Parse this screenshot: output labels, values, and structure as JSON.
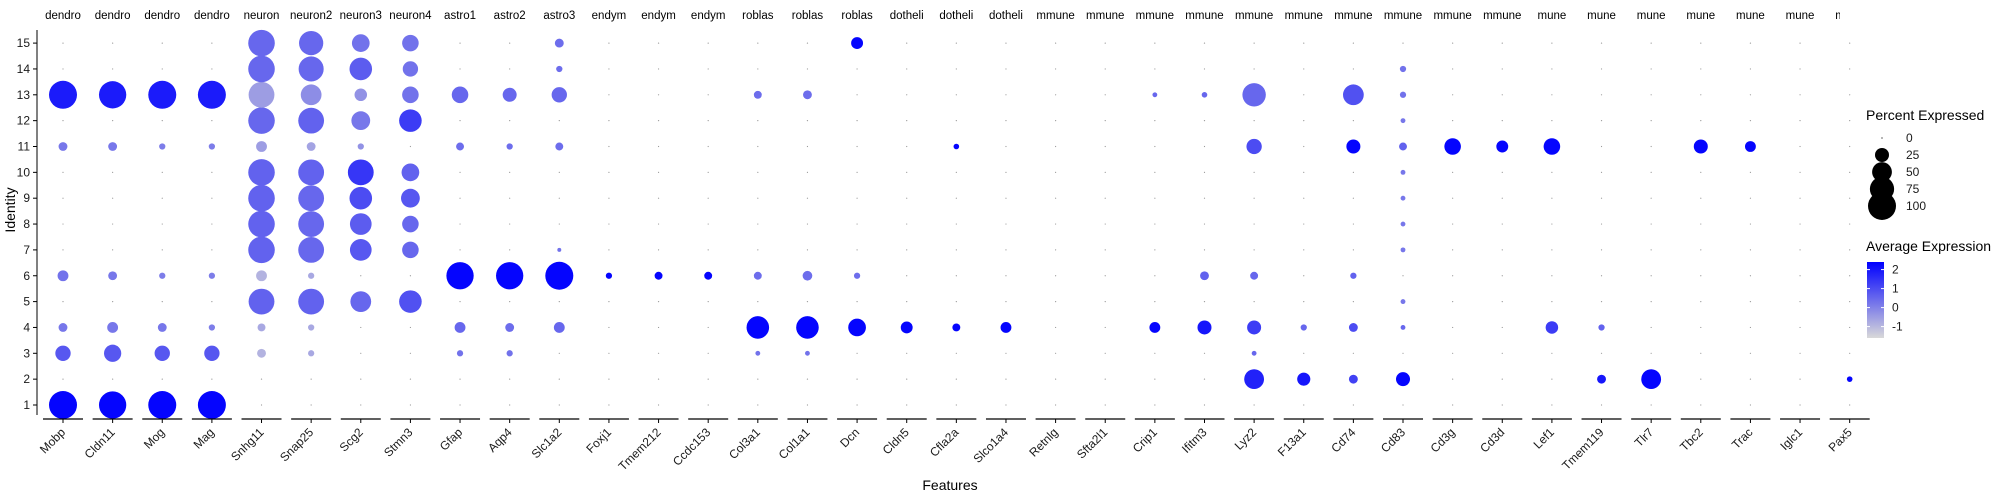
{
  "chart_data": {
    "type": "dotplot",
    "xlabel": "Features",
    "ylabel": "Identity",
    "genes": [
      "Mobp",
      "Cldn11",
      "Mog",
      "Mag",
      "Snhg11",
      "Snap25",
      "Scg2",
      "Stmn3",
      "Gfap",
      "Aqp4",
      "Slc1a2",
      "Foxj1",
      "Tmem212",
      "Ccdc153",
      "Col3a1",
      "Col1a1",
      "Dcn",
      "Cldn5",
      "Cfla2a",
      "Slco1a4",
      "Retnlg",
      "Sftа2l1",
      "Crip1",
      "Ifitm3",
      "Lyz2",
      "F13a1",
      "Cd74",
      "Cd83",
      "Cd3g",
      "Cd3d",
      "Lef1",
      "Tmem119",
      "Tlr7",
      "Tbc2",
      "Trac",
      "Iglc1",
      "Pax5"
    ],
    "group_labels": [
      "dendro",
      "dendro",
      "dendro",
      "dendro",
      "neuron",
      "neuron2",
      "neuron3",
      "neuron4",
      "astro1",
      "astro2",
      "astro3",
      "endym",
      "endym",
      "endym",
      "roblas",
      "roblas",
      "roblas",
      "dotheli",
      "dotheli",
      "dotheli",
      "mmune",
      "mmune",
      "mmune",
      "mmune",
      "mmune",
      "mmune",
      "mmune",
      "mmune",
      "mmune",
      "mmune",
      "mune",
      "mune",
      "mune",
      "mune",
      "mune",
      "mune",
      "mune"
    ],
    "gene_groups": [
      {
        "label": "dendro",
        "genes": [
          "Mobp",
          "Cldn11",
          "Mog",
          "Mag"
        ]
      },
      {
        "label": "neuron",
        "genes": [
          "Snhg11",
          "Snap25",
          "Scg2",
          "Stmn3"
        ]
      },
      {
        "label": "astro",
        "genes": [
          "Gfap",
          "Aqp4",
          "Slc1a2"
        ]
      },
      {
        "label": "endym",
        "genes": [
          "Foxj1",
          "Tmem212",
          "Ccdc153"
        ]
      },
      {
        "label": "roblas",
        "genes": [
          "Col3a1",
          "Col1a1",
          "Dcn"
        ]
      },
      {
        "label": "dotheli",
        "genes": [
          "Cldn5",
          "Cfla2a",
          "Slco1a4"
        ]
      },
      {
        "label": "mmune",
        "genes": [
          "Retnlg",
          "Sftа2l1",
          "Crip1",
          "Ifitm3",
          "Lyz2",
          "F13a1",
          "Cd74",
          "Cd83",
          "Cd3g",
          "Cd3d",
          "Lef1",
          "Tmem119",
          "Tlr7",
          "Tbc2",
          "Trac",
          "Iglc1",
          "Pax5"
        ]
      }
    ],
    "identities": [
      "1",
      "2",
      "3",
      "4",
      "5",
      "6",
      "7",
      "8",
      "9",
      "10",
      "11",
      "12",
      "13",
      "14",
      "15"
    ],
    "legend_size": {
      "title": "Percent Expressed",
      "values": [
        0,
        25,
        50,
        75,
        100
      ]
    },
    "legend_color": {
      "title": "Average Expression",
      "ticks": [
        2,
        1,
        0,
        -1
      ],
      "range": [
        -1.6,
        2.4
      ],
      "low": "#d9d9d9",
      "high": "#0000ff"
    },
    "points": [
      {
        "g": "Mobp",
        "id": "1",
        "pct": 100,
        "avg": 2.3
      },
      {
        "g": "Mobp",
        "id": "3",
        "pct": 30,
        "avg": 0.8
      },
      {
        "g": "Mobp",
        "id": "4",
        "pct": 10,
        "avg": 0.2
      },
      {
        "g": "Mobp",
        "id": "6",
        "pct": 15,
        "avg": 0.3
      },
      {
        "g": "Mobp",
        "id": "11",
        "pct": 10,
        "avg": 0.2
      },
      {
        "g": "Mobp",
        "id": "13",
        "pct": 100,
        "avg": 1.9
      },
      {
        "g": "Cldn11",
        "id": "1",
        "pct": 95,
        "avg": 2.3
      },
      {
        "g": "Cldn11",
        "id": "3",
        "pct": 38,
        "avg": 0.8
      },
      {
        "g": "Cldn11",
        "id": "4",
        "pct": 15,
        "avg": 0.2
      },
      {
        "g": "Cldn11",
        "id": "6",
        "pct": 10,
        "avg": 0.2
      },
      {
        "g": "Cldn11",
        "id": "11",
        "pct": 10,
        "avg": 0.2
      },
      {
        "g": "Cldn11",
        "id": "13",
        "pct": 95,
        "avg": 1.9
      },
      {
        "g": "Mog",
        "id": "1",
        "pct": 100,
        "avg": 2.3
      },
      {
        "g": "Mog",
        "id": "3",
        "pct": 30,
        "avg": 0.8
      },
      {
        "g": "Mog",
        "id": "4",
        "pct": 10,
        "avg": 0.2
      },
      {
        "g": "Mog",
        "id": "6",
        "pct": 5,
        "avg": 0.1
      },
      {
        "g": "Mog",
        "id": "11",
        "pct": 5,
        "avg": 0.1
      },
      {
        "g": "Mog",
        "id": "13",
        "pct": 100,
        "avg": 1.9
      },
      {
        "g": "Mag",
        "id": "1",
        "pct": 100,
        "avg": 2.3
      },
      {
        "g": "Mag",
        "id": "3",
        "pct": 30,
        "avg": 0.8
      },
      {
        "g": "Mag",
        "id": "4",
        "pct": 5,
        "avg": 0.1
      },
      {
        "g": "Mag",
        "id": "6",
        "pct": 5,
        "avg": 0.1
      },
      {
        "g": "Mag",
        "id": "11",
        "pct": 5,
        "avg": 0.1
      },
      {
        "g": "Mag",
        "id": "13",
        "pct": 100,
        "avg": 1.9
      },
      {
        "g": "Snhg11",
        "id": "3",
        "pct": 10,
        "avg": -0.9
      },
      {
        "g": "Snhg11",
        "id": "4",
        "pct": 8,
        "avg": -0.7
      },
      {
        "g": "Snhg11",
        "id": "5",
        "pct": 85,
        "avg": 0.6
      },
      {
        "g": "Snhg11",
        "id": "6",
        "pct": 15,
        "avg": -0.9
      },
      {
        "g": "Snhg11",
        "id": "7",
        "pct": 90,
        "avg": 0.6
      },
      {
        "g": "Snhg11",
        "id": "8",
        "pct": 90,
        "avg": 0.6
      },
      {
        "g": "Snhg11",
        "id": "9",
        "pct": 90,
        "avg": 0.6
      },
      {
        "g": "Snhg11",
        "id": "10",
        "pct": 90,
        "avg": 0.6
      },
      {
        "g": "Snhg11",
        "id": "11",
        "pct": 15,
        "avg": -0.5
      },
      {
        "g": "Snhg11",
        "id": "12",
        "pct": 90,
        "avg": 0.5
      },
      {
        "g": "Snhg11",
        "id": "13",
        "pct": 85,
        "avg": -0.5
      },
      {
        "g": "Snhg11",
        "id": "14",
        "pct": 90,
        "avg": 0.5
      },
      {
        "g": "Snhg11",
        "id": "15",
        "pct": 90,
        "avg": 0.5
      },
      {
        "g": "Snap25",
        "id": "3",
        "pct": 5,
        "avg": -0.7
      },
      {
        "g": "Snap25",
        "id": "4",
        "pct": 5,
        "avg": -0.7
      },
      {
        "g": "Snap25",
        "id": "5",
        "pct": 85,
        "avg": 0.6
      },
      {
        "g": "Snap25",
        "id": "6",
        "pct": 5,
        "avg": -0.7
      },
      {
        "g": "Snap25",
        "id": "7",
        "pct": 85,
        "avg": 0.5
      },
      {
        "g": "Snap25",
        "id": "8",
        "pct": 85,
        "avg": 0.5
      },
      {
        "g": "Snap25",
        "id": "9",
        "pct": 85,
        "avg": 0.5
      },
      {
        "g": "Snap25",
        "id": "10",
        "pct": 85,
        "avg": 0.6
      },
      {
        "g": "Snap25",
        "id": "11",
        "pct": 10,
        "avg": -0.6
      },
      {
        "g": "Snap25",
        "id": "12",
        "pct": 85,
        "avg": 0.6
      },
      {
        "g": "Snap25",
        "id": "13",
        "pct": 55,
        "avg": -0.2
      },
      {
        "g": "Snap25",
        "id": "14",
        "pct": 80,
        "avg": 0.5
      },
      {
        "g": "Snap25",
        "id": "15",
        "pct": 75,
        "avg": 0.5
      },
      {
        "g": "Scg2",
        "id": "5",
        "pct": 55,
        "avg": 0.5
      },
      {
        "g": "Scg2",
        "id": "7",
        "pct": 60,
        "avg": 0.8
      },
      {
        "g": "Scg2",
        "id": "8",
        "pct": 60,
        "avg": 0.7
      },
      {
        "g": "Scg2",
        "id": "9",
        "pct": 65,
        "avg": 1.0
      },
      {
        "g": "Scg2",
        "id": "10",
        "pct": 85,
        "avg": 1.4
      },
      {
        "g": "Scg2",
        "id": "11",
        "pct": 5,
        "avg": -0.3
      },
      {
        "g": "Scg2",
        "id": "12",
        "pct": 45,
        "avg": 0.2
      },
      {
        "g": "Scg2",
        "id": "13",
        "pct": 20,
        "avg": -0.3
      },
      {
        "g": "Scg2",
        "id": "14",
        "pct": 65,
        "avg": 0.7
      },
      {
        "g": "Scg2",
        "id": "15",
        "pct": 40,
        "avg": 0.3
      },
      {
        "g": "Stmn3",
        "id": "5",
        "pct": 65,
        "avg": 0.9
      },
      {
        "g": "Stmn3",
        "id": "7",
        "pct": 35,
        "avg": 0.5
      },
      {
        "g": "Stmn3",
        "id": "8",
        "pct": 35,
        "avg": 0.5
      },
      {
        "g": "Stmn3",
        "id": "9",
        "pct": 45,
        "avg": 0.8
      },
      {
        "g": "Stmn3",
        "id": "10",
        "pct": 40,
        "avg": 0.6
      },
      {
        "g": "Stmn3",
        "id": "12",
        "pct": 65,
        "avg": 1.3
      },
      {
        "g": "Stmn3",
        "id": "13",
        "pct": 35,
        "avg": 0.3
      },
      {
        "g": "Stmn3",
        "id": "14",
        "pct": 30,
        "avg": 0.3
      },
      {
        "g": "Stmn3",
        "id": "15",
        "pct": 35,
        "avg": 0.3
      },
      {
        "g": "Gfap",
        "id": "3",
        "pct": 5,
        "avg": 0.3
      },
      {
        "g": "Gfap",
        "id": "4",
        "pct": 15,
        "avg": 0.5
      },
      {
        "g": "Gfap",
        "id": "6",
        "pct": 95,
        "avg": 2.3
      },
      {
        "g": "Gfap",
        "id": "11",
        "pct": 8,
        "avg": 0.4
      },
      {
        "g": "Gfap",
        "id": "13",
        "pct": 35,
        "avg": 0.5
      },
      {
        "g": "Aqp4",
        "id": "3",
        "pct": 5,
        "avg": 0.3
      },
      {
        "g": "Aqp4",
        "id": "4",
        "pct": 10,
        "avg": 0.4
      },
      {
        "g": "Aqp4",
        "id": "6",
        "pct": 95,
        "avg": 2.3
      },
      {
        "g": "Aqp4",
        "id": "11",
        "pct": 5,
        "avg": 0.4
      },
      {
        "g": "Aqp4",
        "id": "13",
        "pct": 25,
        "avg": 0.5
      },
      {
        "g": "Slc1a2",
        "id": "4",
        "pct": 15,
        "avg": 0.5
      },
      {
        "g": "Slc1a2",
        "id": "6",
        "pct": 100,
        "avg": 2.3
      },
      {
        "g": "Slc1a2",
        "id": "7",
        "pct": 2,
        "avg": 0.3
      },
      {
        "g": "Slc1a2",
        "id": "11",
        "pct": 8,
        "avg": 0.4
      },
      {
        "g": "Slc1a2",
        "id": "13",
        "pct": 30,
        "avg": 0.5
      },
      {
        "g": "Slc1a2",
        "id": "14",
        "pct": 5,
        "avg": 0.4
      },
      {
        "g": "Slc1a2",
        "id": "15",
        "pct": 10,
        "avg": 0.4
      },
      {
        "g": "Foxj1",
        "id": "6",
        "pct": 5,
        "avg": 2.3
      },
      {
        "g": "Tmem212",
        "id": "6",
        "pct": 8,
        "avg": 2.3
      },
      {
        "g": "Ccdc153",
        "id": "6",
        "pct": 8,
        "avg": 2.3
      },
      {
        "g": "Col3a1",
        "id": "3",
        "pct": 3,
        "avg": 0.3
      },
      {
        "g": "Col3a1",
        "id": "4",
        "pct": 65,
        "avg": 2.3
      },
      {
        "g": "Col3a1",
        "id": "6",
        "pct": 8,
        "avg": 0.4
      },
      {
        "g": "Col3a1",
        "id": "13",
        "pct": 8,
        "avg": 0.4
      },
      {
        "g": "Col1a1",
        "id": "3",
        "pct": 3,
        "avg": 0.3
      },
      {
        "g": "Col1a1",
        "id": "4",
        "pct": 65,
        "avg": 2.3
      },
      {
        "g": "Col1a1",
        "id": "6",
        "pct": 12,
        "avg": 0.4
      },
      {
        "g": "Col1a1",
        "id": "13",
        "pct": 10,
        "avg": 0.4
      },
      {
        "g": "Dcn",
        "id": "4",
        "pct": 40,
        "avg": 2.3
      },
      {
        "g": "Dcn",
        "id": "6",
        "pct": 5,
        "avg": 0.4
      },
      {
        "g": "Dcn",
        "id": "15",
        "pct": 18,
        "avg": 2.3
      },
      {
        "g": "Cldn5",
        "id": "4",
        "pct": 18,
        "avg": 2.3
      },
      {
        "g": "Cfla2a",
        "id": "4",
        "pct": 8,
        "avg": 2.3
      },
      {
        "g": "Cfla2a",
        "id": "11",
        "pct": 4,
        "avg": 2.3
      },
      {
        "g": "Slco1a4",
        "id": "4",
        "pct": 15,
        "avg": 2.3
      },
      {
        "g": "Crip1",
        "id": "4",
        "pct": 15,
        "avg": 2.3
      },
      {
        "g": "Crip1",
        "id": "13",
        "pct": 3,
        "avg": 0.5
      },
      {
        "g": "Ifitm3",
        "id": "4",
        "pct": 25,
        "avg": 2.0
      },
      {
        "g": "Ifitm3",
        "id": "6",
        "pct": 10,
        "avg": 0.6
      },
      {
        "g": "Ifitm3",
        "id": "13",
        "pct": 4,
        "avg": 0.5
      },
      {
        "g": "Lyz2",
        "id": "2",
        "pct": 50,
        "avg": 1.8
      },
      {
        "g": "Lyz2",
        "id": "3",
        "pct": 3,
        "avg": 0.5
      },
      {
        "g": "Lyz2",
        "id": "4",
        "pct": 25,
        "avg": 1.3
      },
      {
        "g": "Lyz2",
        "id": "6",
        "pct": 8,
        "avg": 0.5
      },
      {
        "g": "Lyz2",
        "id": "11",
        "pct": 30,
        "avg": 1.0
      },
      {
        "g": "Lyz2",
        "id": "13",
        "pct": 70,
        "avg": 0.5
      },
      {
        "g": "F13a1",
        "id": "2",
        "pct": 22,
        "avg": 2.0
      },
      {
        "g": "F13a1",
        "id": "4",
        "pct": 5,
        "avg": 0.5
      },
      {
        "g": "Cd74",
        "id": "2",
        "pct": 10,
        "avg": 1.2
      },
      {
        "g": "Cd74",
        "id": "4",
        "pct": 10,
        "avg": 1.0
      },
      {
        "g": "Cd74",
        "id": "6",
        "pct": 5,
        "avg": 0.6
      },
      {
        "g": "Cd74",
        "id": "11",
        "pct": 25,
        "avg": 2.3
      },
      {
        "g": "Cd74",
        "id": "13",
        "pct": 55,
        "avg": 0.9
      },
      {
        "g": "Cd83",
        "id": "2",
        "pct": 25,
        "avg": 2.3
      },
      {
        "g": "Cd83",
        "id": "4",
        "pct": 3,
        "avg": 0.5
      },
      {
        "g": "Cd83",
        "id": "5",
        "pct": 3,
        "avg": 0.2
      },
      {
        "g": "Cd83",
        "id": "7",
        "pct": 3,
        "avg": 0.2
      },
      {
        "g": "Cd83",
        "id": "8",
        "pct": 3,
        "avg": 0.2
      },
      {
        "g": "Cd83",
        "id": "9",
        "pct": 3,
        "avg": 0.2
      },
      {
        "g": "Cd83",
        "id": "10",
        "pct": 3,
        "avg": 0.2
      },
      {
        "g": "Cd83",
        "id": "11",
        "pct": 8,
        "avg": 0.6
      },
      {
        "g": "Cd83",
        "id": "12",
        "pct": 3,
        "avg": 0.2
      },
      {
        "g": "Cd83",
        "id": "13",
        "pct": 5,
        "avg": 0.3
      },
      {
        "g": "Cd83",
        "id": "14",
        "pct": 5,
        "avg": 0.3
      },
      {
        "g": "Cd3g",
        "id": "11",
        "pct": 35,
        "avg": 2.3
      },
      {
        "g": "Cd3d",
        "id": "11",
        "pct": 18,
        "avg": 2.3
      },
      {
        "g": "Lef1",
        "id": "4",
        "pct": 20,
        "avg": 1.3
      },
      {
        "g": "Lef1",
        "id": "11",
        "pct": 35,
        "avg": 2.3
      },
      {
        "g": "Tmem119",
        "id": "2",
        "pct": 10,
        "avg": 2.0
      },
      {
        "g": "Tmem119",
        "id": "4",
        "pct": 5,
        "avg": 0.6
      },
      {
        "g": "Tlr7",
        "id": "2",
        "pct": 50,
        "avg": 2.3
      },
      {
        "g": "Tbc2",
        "id": "11",
        "pct": 25,
        "avg": 2.3
      },
      {
        "g": "Trac",
        "id": "11",
        "pct": 15,
        "avg": 2.3
      },
      {
        "g": "Pax5",
        "id": "2",
        "pct": 4,
        "avg": 2.3
      }
    ]
  }
}
